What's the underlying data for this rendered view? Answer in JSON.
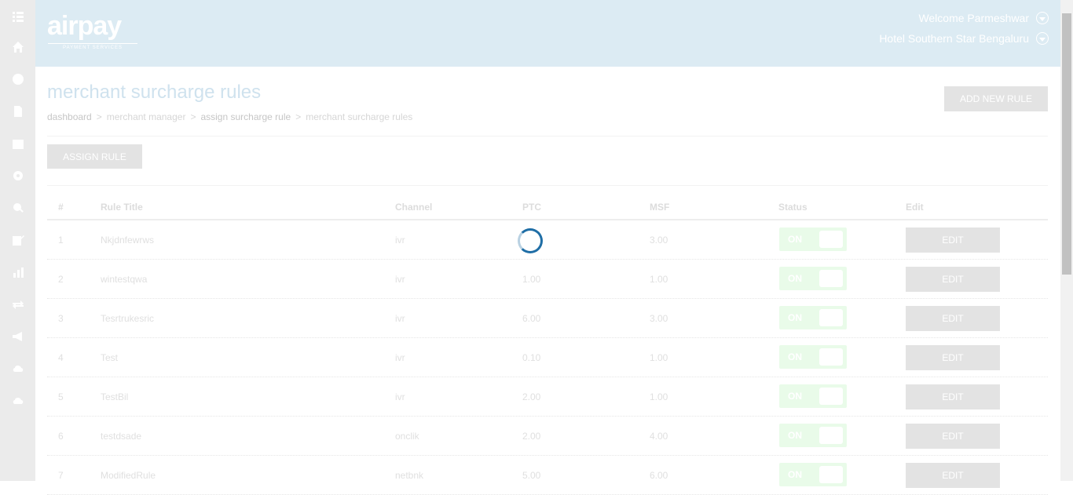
{
  "header": {
    "logo": "airpay",
    "logo_sub": "PAYMENT SERVICES",
    "welcome": "Welcome Parmeshwar",
    "merchant": "Hotel Southern Star Bengaluru"
  },
  "sidebar": {
    "icons": [
      "menu-icon",
      "home-icon",
      "globe-icon",
      "document-icon",
      "calendar-icon",
      "gear-icon",
      "search-zoom-icon",
      "edit-icon",
      "bar-chart-icon",
      "refresh-icon",
      "megaphone-icon",
      "cloud-upload-icon",
      "cloud-download-icon"
    ]
  },
  "page": {
    "title": "merchant surcharge rules",
    "breadcrumb": [
      "dashboard",
      "merchant manager",
      "assign surcharge rule",
      "merchant surcharge rules"
    ],
    "separator": ">",
    "add_button": "ADD NEW RULE",
    "assign_button": "ASSIGN RULE"
  },
  "table": {
    "headers": [
      "#",
      "Rule Title",
      "Channel",
      "PTC",
      "MSF",
      "Status",
      "Edit"
    ],
    "rows": [
      {
        "num": "1",
        "title": "Nkjdnfewrws",
        "channel": "ivr",
        "ptc": "",
        "msf": "3.00",
        "status": "ON",
        "edit": "EDIT"
      },
      {
        "num": "2",
        "title": "wintestqwa",
        "channel": "ivr",
        "ptc": "1.00",
        "msf": "1.00",
        "status": "ON",
        "edit": "EDIT"
      },
      {
        "num": "3",
        "title": "Tesrtrukesric",
        "channel": "ivr",
        "ptc": "6.00",
        "msf": "3.00",
        "status": "ON",
        "edit": "EDIT"
      },
      {
        "num": "4",
        "title": "Test",
        "channel": "ivr",
        "ptc": "0.10",
        "msf": "1.00",
        "status": "ON",
        "edit": "EDIT"
      },
      {
        "num": "5",
        "title": "TestBil",
        "channel": "ivr",
        "ptc": "2.00",
        "msf": "1.00",
        "status": "ON",
        "edit": "EDIT"
      },
      {
        "num": "6",
        "title": "testdsade",
        "channel": "onclik",
        "ptc": "2.00",
        "msf": "4.00",
        "status": "ON",
        "edit": "EDIT"
      },
      {
        "num": "7",
        "title": "ModifiedRule",
        "channel": "netbnk",
        "ptc": "5.00",
        "msf": "6.00",
        "status": "ON",
        "edit": "EDIT"
      }
    ]
  }
}
